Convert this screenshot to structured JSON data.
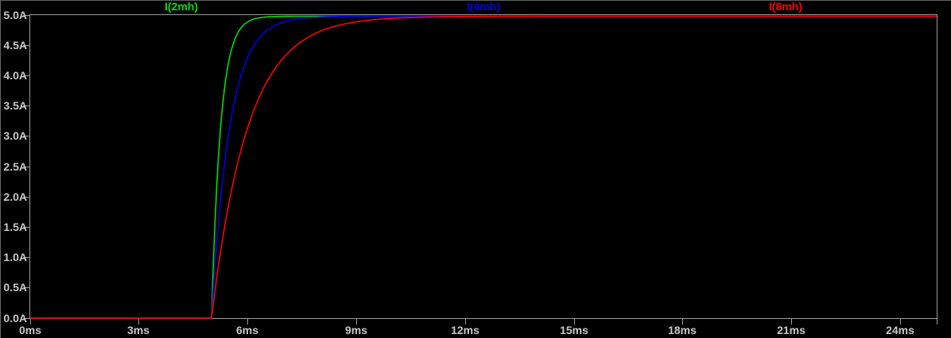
{
  "window": {
    "background": "#000000",
    "edge_top_color": "#5e5e5e",
    "edge_left_color": "#6a6a6a"
  },
  "plot": {
    "border_color": "#9c9c9c",
    "tick_color": "#9c9c9c",
    "label_color": "#c8c8c8",
    "x_axis": {
      "min_ms": 0,
      "max_ms": 25,
      "tick_interval_ms": 3,
      "tick_labels": [
        "0ms",
        "3ms",
        "6ms",
        "9ms",
        "12ms",
        "15ms",
        "18ms",
        "21ms",
        "24ms"
      ],
      "unlabeled_tick_ms": 25
    },
    "y_axis": {
      "min_A": 0,
      "max_A": 5,
      "tick_interval_A": 0.5,
      "tick_labels": [
        "5.0A",
        "4.5A",
        "4.0A",
        "3.5A",
        "3.0A",
        "2.5A",
        "2.0A",
        "1.5A",
        "1.0A",
        "0.5A",
        "0.0A"
      ]
    },
    "legend": [
      {
        "label": "I(2mh)",
        "color": "#00e000"
      },
      {
        "label": "I(4mh)",
        "color": "#0000e6"
      },
      {
        "label": "I(8mh)",
        "color": "#ff0000"
      }
    ]
  },
  "chart_data": {
    "type": "line",
    "title": "",
    "xlabel": "",
    "ylabel": "",
    "x_unit": "ms",
    "y_unit": "A",
    "xlim": [
      0,
      25
    ],
    "ylim": [
      0,
      5
    ],
    "grid": false,
    "legend_position": "top",
    "series": [
      {
        "name": "I(2mh)",
        "color": "#00e000",
        "model": {
          "type": "exponential_rise",
          "step_time_ms": 5,
          "final_A": 5,
          "tau_ms": 0.25
        },
        "points_t_ms_I_A": [
          [
            0,
            0
          ],
          [
            5,
            0
          ],
          [
            5.1,
            1.65
          ],
          [
            5.25,
            3.16
          ],
          [
            5.5,
            4.32
          ],
          [
            5.75,
            4.75
          ],
          [
            6,
            4.91
          ],
          [
            6.25,
            4.97
          ],
          [
            6.5,
            4.99
          ],
          [
            7,
            5.0
          ],
          [
            10,
            5.0
          ],
          [
            15,
            5.0
          ],
          [
            20,
            5.0
          ],
          [
            25,
            5.0
          ]
        ]
      },
      {
        "name": "I(4mh)",
        "color": "#0000e6",
        "model": {
          "type": "exponential_rise",
          "step_time_ms": 5,
          "final_A": 5,
          "tau_ms": 0.5
        },
        "points_t_ms_I_A": [
          [
            0,
            0
          ],
          [
            5,
            0
          ],
          [
            5.25,
            1.97
          ],
          [
            5.5,
            3.16
          ],
          [
            5.75,
            3.88
          ],
          [
            6,
            4.32
          ],
          [
            6.25,
            4.59
          ],
          [
            6.5,
            4.75
          ],
          [
            7,
            4.91
          ],
          [
            7.5,
            4.97
          ],
          [
            8,
            4.99
          ],
          [
            9,
            5.0
          ],
          [
            15,
            5.0
          ],
          [
            20,
            5.0
          ],
          [
            25,
            5.0
          ]
        ]
      },
      {
        "name": "I(8mh)",
        "color": "#ff0000",
        "model": {
          "type": "exponential_rise",
          "step_time_ms": 5,
          "final_A": 5,
          "tau_ms": 1.0
        },
        "points_t_ms_I_A": [
          [
            0,
            0
          ],
          [
            5,
            0
          ],
          [
            5.5,
            1.97
          ],
          [
            6,
            3.16
          ],
          [
            6.5,
            3.88
          ],
          [
            7,
            4.32
          ],
          [
            7.5,
            4.59
          ],
          [
            8,
            4.75
          ],
          [
            9,
            4.91
          ],
          [
            10,
            4.97
          ],
          [
            11,
            4.99
          ],
          [
            12,
            5.0
          ],
          [
            15,
            5.0
          ],
          [
            20,
            5.0
          ],
          [
            25,
            5.0
          ]
        ]
      }
    ]
  }
}
